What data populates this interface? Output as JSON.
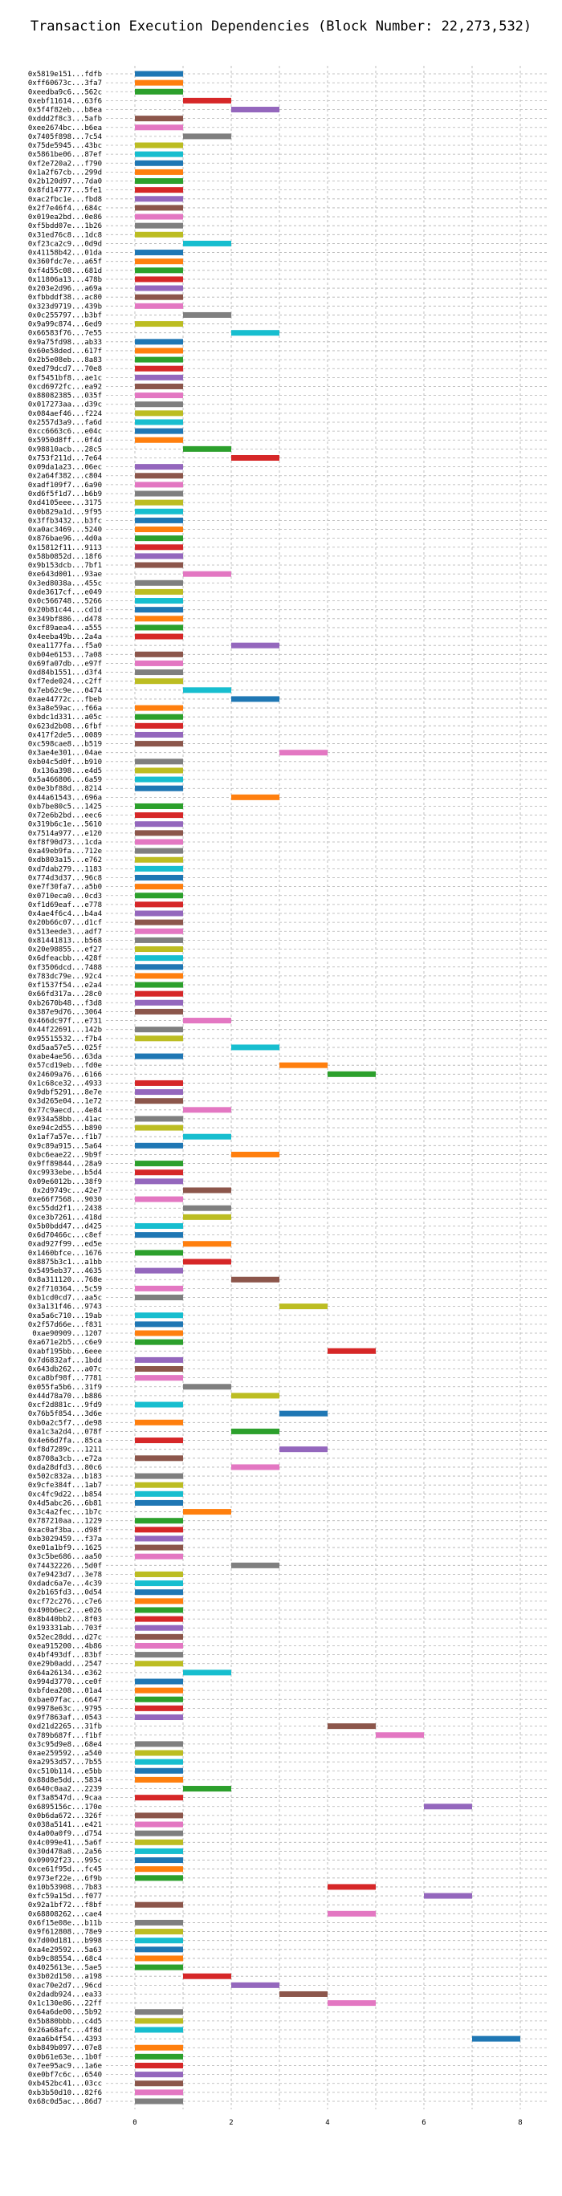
{
  "chart_data": {
    "type": "bar",
    "orientation": "horizontal",
    "title": "Transaction Execution Dependencies (Block Number: 22,273,532)",
    "xlabel": "",
    "ylabel": "",
    "xlim": [
      -0.6,
      8.6
    ],
    "xticks": [
      0,
      2,
      4,
      6,
      8
    ],
    "grid": true,
    "palette": [
      "#1f77b4",
      "#ff7f0e",
      "#2ca02c",
      "#d62728",
      "#9467bd",
      "#8c564b",
      "#e377c2",
      "#7f7f7f",
      "#bcbd22",
      "#17becf"
    ],
    "transactions": [
      {
        "tx": "0x5819e151...fdfb",
        "start": 0
      },
      {
        "tx": "0xff60673c...3fa7",
        "start": 0
      },
      {
        "tx": "0xeedba9c6...562c",
        "start": 0
      },
      {
        "tx": "0xebf11614...63f6",
        "start": 1
      },
      {
        "tx": "0x5f4f82eb...b8ea",
        "start": 2
      },
      {
        "tx": "0xddd2f8c3...5afb",
        "start": 0
      },
      {
        "tx": "0xee2674bc...b6ea",
        "start": 0
      },
      {
        "tx": "0x7405f898...7c54",
        "start": 1
      },
      {
        "tx": "0x75de5945...43bc",
        "start": 0
      },
      {
        "tx": "0x5861be06...87ef",
        "start": 0
      },
      {
        "tx": "0xf2e720a2...f790",
        "start": 0
      },
      {
        "tx": "0x1a2f67cb...299d",
        "start": 0
      },
      {
        "tx": "0x2b120d97...7da0",
        "start": 0
      },
      {
        "tx": "0x8fd14777...5fe1",
        "start": 0
      },
      {
        "tx": "0xac2fbc1e...fbd8",
        "start": 0
      },
      {
        "tx": "0x2f7e46f4...684c",
        "start": 0
      },
      {
        "tx": "0x019ea2bd...0e86",
        "start": 0
      },
      {
        "tx": "0xf5bdd07e...1b26",
        "start": 0
      },
      {
        "tx": "0x31ed76c8...1dc8",
        "start": 0
      },
      {
        "tx": "0xf23ca2c9...0d9d",
        "start": 1
      },
      {
        "tx": "0x41158b42...01da",
        "start": 0
      },
      {
        "tx": "0x360fdc7e...a65f",
        "start": 0
      },
      {
        "tx": "0xf4d55c08...681d",
        "start": 0
      },
      {
        "tx": "0x11806a13...478b",
        "start": 0
      },
      {
        "tx": "0x203e2d96...a69a",
        "start": 0
      },
      {
        "tx": "0xfbbddf38...ac80",
        "start": 0
      },
      {
        "tx": "0x323d9719...439b",
        "start": 0
      },
      {
        "tx": "0x0c255797...b3bf",
        "start": 1
      },
      {
        "tx": "0x9a99c874...6ed9",
        "start": 0
      },
      {
        "tx": "0x66583f76...7e55",
        "start": 2
      },
      {
        "tx": "0x9a75fd98...ab33",
        "start": 0
      },
      {
        "tx": "0x60e58ded...617f",
        "start": 0
      },
      {
        "tx": "0x2b5e08eb...8a83",
        "start": 0
      },
      {
        "tx": "0xed79dcd7...70e8",
        "start": 0
      },
      {
        "tx": "0xf5451bf8...ae1c",
        "start": 0
      },
      {
        "tx": "0xcd6972fc...ea92",
        "start": 0
      },
      {
        "tx": "0x88082385...035f",
        "start": 0
      },
      {
        "tx": "0x017273aa...d39c",
        "start": 0
      },
      {
        "tx": "0x084aef46...f224",
        "start": 0
      },
      {
        "tx": "0x2557d3a9...fa6d",
        "start": 0
      },
      {
        "tx": "0xcc6663c6...e04c",
        "start": 0
      },
      {
        "tx": "0x5950d8ff...0f4d",
        "start": 0
      },
      {
        "tx": "0x98810acb...28c5",
        "start": 1
      },
      {
        "tx": "0x753f211d...7e64",
        "start": 2
      },
      {
        "tx": "0x09da1a23...06ec",
        "start": 0
      },
      {
        "tx": "0x2a64f382...c804",
        "start": 0
      },
      {
        "tx": "0xadf109f7...6a90",
        "start": 0
      },
      {
        "tx": "0xd6f5f1d7...b6b9",
        "start": 0
      },
      {
        "tx": "0xd4105eee...3175",
        "start": 0
      },
      {
        "tx": "0x0b829a1d...9f95",
        "start": 0
      },
      {
        "tx": "0x3ffb3432...b3fc",
        "start": 0
      },
      {
        "tx": "0xa0ac3469...5240",
        "start": 0
      },
      {
        "tx": "0x876bae96...4d0a",
        "start": 0
      },
      {
        "tx": "0x15812f11...9113",
        "start": 0
      },
      {
        "tx": "0x58b0852d...18f6",
        "start": 0
      },
      {
        "tx": "0x9b153dcb...7bf1",
        "start": 0
      },
      {
        "tx": "0xe643d001...93ae",
        "start": 1
      },
      {
        "tx": "0x3ed8038a...455c",
        "start": 0
      },
      {
        "tx": "0xde3617cf...e049",
        "start": 0
      },
      {
        "tx": "0x0c566748...5266",
        "start": 0
      },
      {
        "tx": "0x20b81c44...cd1d",
        "start": 0
      },
      {
        "tx": "0x349bf886...d478",
        "start": 0
      },
      {
        "tx": "0xcf89aea4...a555",
        "start": 0
      },
      {
        "tx": "0x4eeba49b...2a4a",
        "start": 0
      },
      {
        "tx": "0xea1177fa...f5a0",
        "start": 2
      },
      {
        "tx": "0xb04e6153...7a08",
        "start": 0
      },
      {
        "tx": "0x69fa07db...e97f",
        "start": 0
      },
      {
        "tx": "0xd84b1551...d3f4",
        "start": 0
      },
      {
        "tx": "0xf7ede024...c2ff",
        "start": 0
      },
      {
        "tx": "0x7eb62c9e...0474",
        "start": 1
      },
      {
        "tx": "0xae44772c...fbeb",
        "start": 2
      },
      {
        "tx": "0x3a8e59ac...f66a",
        "start": 0
      },
      {
        "tx": "0xbdc1d331...a05c",
        "start": 0
      },
      {
        "tx": "0x623d2b08...6fbf",
        "start": 0
      },
      {
        "tx": "0x417f2de5...0089",
        "start": 0
      },
      {
        "tx": "0xc598cae8...b519",
        "start": 0
      },
      {
        "tx": "0x3ae4e301...04ae",
        "start": 3
      },
      {
        "tx": "0xb04c5d0f...b910",
        "start": 0
      },
      {
        "tx": "0x136a398...e4d5",
        "start": 0
      },
      {
        "tx": "0x5a466806...6a59",
        "start": 0
      },
      {
        "tx": "0x0e3bf88d...8214",
        "start": 0
      },
      {
        "tx": "0x44a61543...696a",
        "start": 2
      },
      {
        "tx": "0xb7be80c5...1425",
        "start": 0
      },
      {
        "tx": "0x72e6b2bd...eec6",
        "start": 0
      },
      {
        "tx": "0x319b6c1e...5610",
        "start": 0
      },
      {
        "tx": "0x7514a977...e120",
        "start": 0
      },
      {
        "tx": "0xf8f90d73...1cda",
        "start": 0
      },
      {
        "tx": "0xa49eb9fa...712e",
        "start": 0
      },
      {
        "tx": "0xdb803a15...e762",
        "start": 0
      },
      {
        "tx": "0xd7dab279...1183",
        "start": 0
      },
      {
        "tx": "0x774d3d37...96c8",
        "start": 0
      },
      {
        "tx": "0xe7f30fa7...a5b0",
        "start": 0
      },
      {
        "tx": "0x0710eca0...0cd3",
        "start": 0
      },
      {
        "tx": "0xf1d69eaf...e778",
        "start": 0
      },
      {
        "tx": "0x4ae4f6c4...b4a4",
        "start": 0
      },
      {
        "tx": "0x20b66c07...d1cf",
        "start": 0
      },
      {
        "tx": "0x513eede3...adf7",
        "start": 0
      },
      {
        "tx": "0x81441813...b568",
        "start": 0
      },
      {
        "tx": "0x20e98855...ef27",
        "start": 0
      },
      {
        "tx": "0x6dfeacbb...428f",
        "start": 0
      },
      {
        "tx": "0xf3506dcd...7488",
        "start": 0
      },
      {
        "tx": "0x783dc79e...92c4",
        "start": 0
      },
      {
        "tx": "0xf1537f54...e2a4",
        "start": 0
      },
      {
        "tx": "0x66fd317a...28c0",
        "start": 0
      },
      {
        "tx": "0xb2670b48...f3d8",
        "start": 0
      },
      {
        "tx": "0x387e9d76...3064",
        "start": 0
      },
      {
        "tx": "0x466dc97f...e731",
        "start": 1
      },
      {
        "tx": "0x44f22691...142b",
        "start": 0
      },
      {
        "tx": "0x95515532...f7b4",
        "start": 0
      },
      {
        "tx": "0xd5aa57e5...025f",
        "start": 2
      },
      {
        "tx": "0xabe4ae56...63da",
        "start": 0
      },
      {
        "tx": "0x57cd19eb...fd0e",
        "start": 3
      },
      {
        "tx": "0x24609a76...6166",
        "start": 4
      },
      {
        "tx": "0x1c68ce32...4933",
        "start": 0
      },
      {
        "tx": "0x9dbf5291...8e7e",
        "start": 0
      },
      {
        "tx": "0x3d265e04...1e72",
        "start": 0
      },
      {
        "tx": "0x77c9aecd...4e84",
        "start": 1
      },
      {
        "tx": "0x934a58bb...41ac",
        "start": 0
      },
      {
        "tx": "0xe94c2d55...b890",
        "start": 0
      },
      {
        "tx": "0x1af7a57e...f1b7",
        "start": 1
      },
      {
        "tx": "0x9c89a915...5a64",
        "start": 0
      },
      {
        "tx": "0xbc6eae22...9b9f",
        "start": 2
      },
      {
        "tx": "0x9ff89844...28a9",
        "start": 0
      },
      {
        "tx": "0xc9933ebe...b5d4",
        "start": 0
      },
      {
        "tx": "0x09e6012b...38f9",
        "start": 0
      },
      {
        "tx": "0x2d9749c...42e7",
        "start": 1
      },
      {
        "tx": "0xe66f7568...9030",
        "start": 0
      },
      {
        "tx": "0xc55dd2f1...2438",
        "start": 1
      },
      {
        "tx": "0xce3b7261...418d",
        "start": 1
      },
      {
        "tx": "0x5b0bdd47...d425",
        "start": 0
      },
      {
        "tx": "0x6d70466c...c8ef",
        "start": 0
      },
      {
        "tx": "0xad927f99...ed5e",
        "start": 1
      },
      {
        "tx": "0x1460bfce...1676",
        "start": 0
      },
      {
        "tx": "0x8875b3c1...a1bb",
        "start": 1
      },
      {
        "tx": "0x5495eb37...4635",
        "start": 0
      },
      {
        "tx": "0x8a311120...768e",
        "start": 2
      },
      {
        "tx": "0x2f710364...5c59",
        "start": 0
      },
      {
        "tx": "0xb1cd0cd7...aa5c",
        "start": 0
      },
      {
        "tx": "0x3a131f46...9743",
        "start": 3
      },
      {
        "tx": "0xa5a6c710...19ab",
        "start": 0
      },
      {
        "tx": "0x2f57d66e...f831",
        "start": 0
      },
      {
        "tx": "0xae90909...1207",
        "start": 0
      },
      {
        "tx": "0xa671e2b5...c6e9",
        "start": 0
      },
      {
        "tx": "0xabf195bb...6eee",
        "start": 4
      },
      {
        "tx": "0x7d6832af...1bdd",
        "start": 0
      },
      {
        "tx": "0x643db262...a07c",
        "start": 0
      },
      {
        "tx": "0xca8bf98f...7781",
        "start": 0
      },
      {
        "tx": "0x055fa5b6...31f9",
        "start": 1
      },
      {
        "tx": "0x44d78a70...b886",
        "start": 2
      },
      {
        "tx": "0xcf2d881c...9fd9",
        "start": 0
      },
      {
        "tx": "0x76b5f854...3d6e",
        "start": 3
      },
      {
        "tx": "0xb0a2c5f7...de98",
        "start": 0
      },
      {
        "tx": "0xa1c3a2d4...078f",
        "start": 2
      },
      {
        "tx": "0x4e66d7fa...85ca",
        "start": 0
      },
      {
        "tx": "0xf8d7289c...1211",
        "start": 3
      },
      {
        "tx": "0x8708a3cb...e72a",
        "start": 0
      },
      {
        "tx": "0xda28dfd3...80c6",
        "start": 2
      },
      {
        "tx": "0x502c832a...b183",
        "start": 0
      },
      {
        "tx": "0x9cfe384f...1ab7",
        "start": 0
      },
      {
        "tx": "0xc4fc9d22...b854",
        "start": 0
      },
      {
        "tx": "0x4d5abc26...6b81",
        "start": 0
      },
      {
        "tx": "0x3c4a2fec...1b7c",
        "start": 1
      },
      {
        "tx": "0x787210aa...1229",
        "start": 0
      },
      {
        "tx": "0xac0af3ba...d98f",
        "start": 0
      },
      {
        "tx": "0xb3029459...f37a",
        "start": 0
      },
      {
        "tx": "0xe01a1bf9...1625",
        "start": 0
      },
      {
        "tx": "0x3c5be686...aa50",
        "start": 0
      },
      {
        "tx": "0x74432226...5d0f",
        "start": 2
      },
      {
        "tx": "0x7e9423d7...3e78",
        "start": 0
      },
      {
        "tx": "0xdadc6a7e...4c39",
        "start": 0
      },
      {
        "tx": "0x2b165fd3...0d54",
        "start": 0
      },
      {
        "tx": "0xcf72c276...c7e6",
        "start": 0
      },
      {
        "tx": "0x490b6ec2...e026",
        "start": 0
      },
      {
        "tx": "0x8b440bb2...8f03",
        "start": 0
      },
      {
        "tx": "0x193331ab...703f",
        "start": 0
      },
      {
        "tx": "0x52ec28dd...d27c",
        "start": 0
      },
      {
        "tx": "0xea915200...4b86",
        "start": 0
      },
      {
        "tx": "0x4bf493df...83bf",
        "start": 0
      },
      {
        "tx": "0xe29b0add...2547",
        "start": 0
      },
      {
        "tx": "0x64a26134...e362",
        "start": 1
      },
      {
        "tx": "0x994d3770...ce0f",
        "start": 0
      },
      {
        "tx": "0xbfdea208...01a4",
        "start": 0
      },
      {
        "tx": "0xbae07fac...6647",
        "start": 0
      },
      {
        "tx": "0x9978e63c...9795",
        "start": 0
      },
      {
        "tx": "0x9f7863af...0543",
        "start": 0
      },
      {
        "tx": "0xd21d2265...31fb",
        "start": 4
      },
      {
        "tx": "0x789b687f...f1bf",
        "start": 5
      },
      {
        "tx": "0x3c95d9e8...68e4",
        "start": 0
      },
      {
        "tx": "0xae259592...a540",
        "start": 0
      },
      {
        "tx": "0xa2953d57...7b55",
        "start": 0
      },
      {
        "tx": "0xc510b114...e5bb",
        "start": 0
      },
      {
        "tx": "0x88d8e5dd...5834",
        "start": 0
      },
      {
        "tx": "0x640c0aa2...2239",
        "start": 1
      },
      {
        "tx": "0xf3a8547d...9caa",
        "start": 0
      },
      {
        "tx": "0x6895156c...170e",
        "start": 6
      },
      {
        "tx": "0x0b6da672...326f",
        "start": 0
      },
      {
        "tx": "0x038a5141...e421",
        "start": 0
      },
      {
        "tx": "0x4a00a0f9...d754",
        "start": 0
      },
      {
        "tx": "0x4c099e41...5a6f",
        "start": 0
      },
      {
        "tx": "0x30d478a8...2a56",
        "start": 0
      },
      {
        "tx": "0x09092f23...995c",
        "start": 0
      },
      {
        "tx": "0xce61f95d...fc45",
        "start": 0
      },
      {
        "tx": "0x973ef22e...6f9b",
        "start": 0
      },
      {
        "tx": "0x10b53908...7b83",
        "start": 4
      },
      {
        "tx": "0xfc59a15d...f077",
        "start": 6
      },
      {
        "tx": "0x92a1bf72...f8bf",
        "start": 0
      },
      {
        "tx": "0x68808262...cae4",
        "start": 4
      },
      {
        "tx": "0x6f15e08e...b11b",
        "start": 0
      },
      {
        "tx": "0x9f612808...78e9",
        "start": 0
      },
      {
        "tx": "0x7d00d181...b998",
        "start": 0
      },
      {
        "tx": "0xa4e29592...5a63",
        "start": 0
      },
      {
        "tx": "0xb9c88554...68c4",
        "start": 0
      },
      {
        "tx": "0x4025613e...5ae5",
        "start": 0
      },
      {
        "tx": "0x3b02d150...a198",
        "start": 1
      },
      {
        "tx": "0xac70e2d7...96cd",
        "start": 2
      },
      {
        "tx": "0x2dadb924...ea33",
        "start": 3
      },
      {
        "tx": "0x1c130e86...22ff",
        "start": 4
      },
      {
        "tx": "0x64a6de00...5b92",
        "start": 0
      },
      {
        "tx": "0x5b880bbb...c4d5",
        "start": 0
      },
      {
        "tx": "0x26a68afc...4f8d",
        "start": 0
      },
      {
        "tx": "0xaa6b4f54...4393",
        "start": 7
      },
      {
        "tx": "0xb849b097...07e8",
        "start": 0
      },
      {
        "tx": "0x0b61e63e...1b0f",
        "start": 0
      },
      {
        "tx": "0x7ee95ac9...1a6e",
        "start": 0
      },
      {
        "tx": "0xe0bf7c6c...6540",
        "start": 0
      },
      {
        "tx": "0xb452bc41...03cc",
        "start": 0
      },
      {
        "tx": "0xb3b50d10...82f6",
        "start": 0
      },
      {
        "tx": "0x68c0d5ac...86d7",
        "start": 0
      }
    ]
  }
}
